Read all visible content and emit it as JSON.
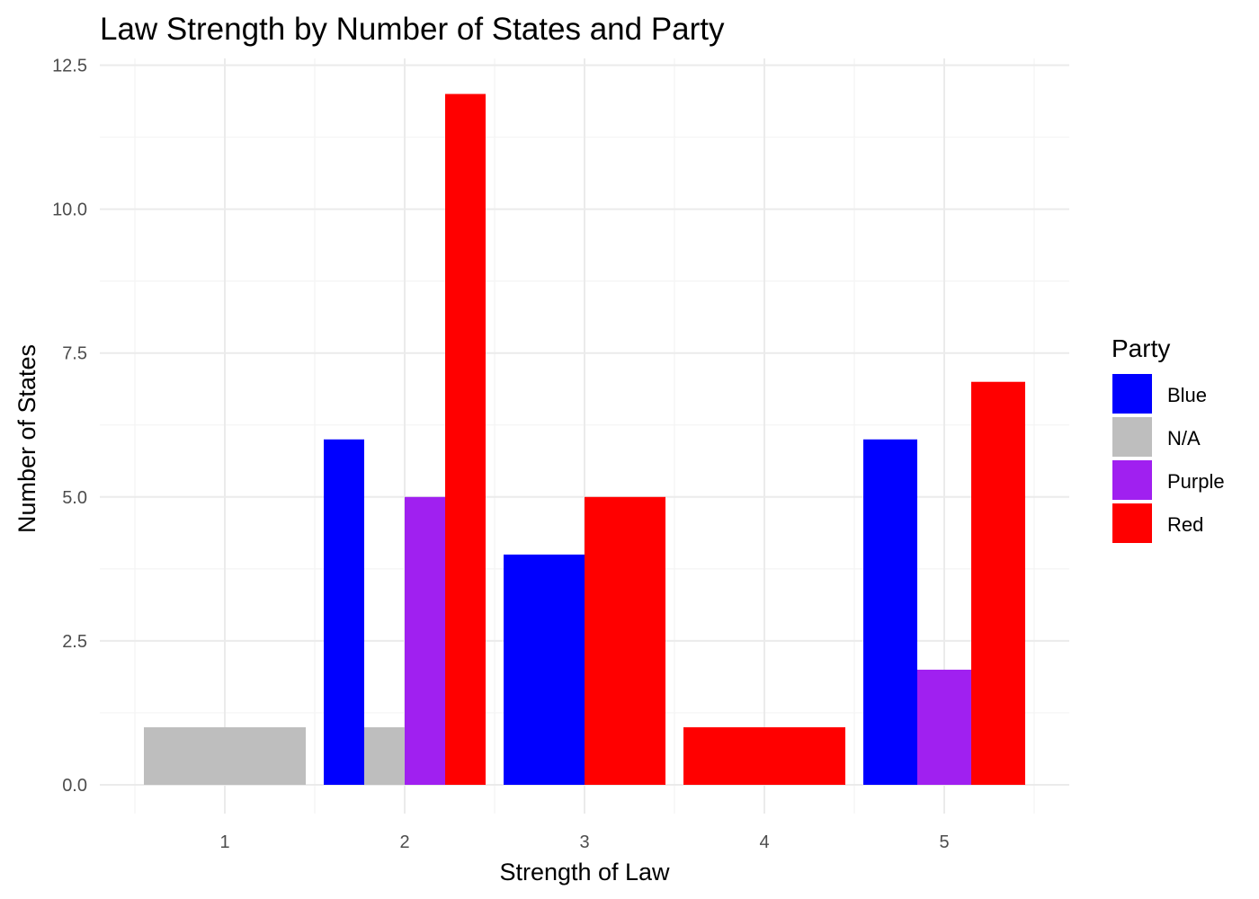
{
  "chart_data": {
    "type": "bar",
    "title": "Law Strength by Number of States and Party",
    "xlabel": "Strength of Law",
    "ylabel": "Number of States",
    "categories": [
      "1",
      "2",
      "3",
      "4",
      "5"
    ],
    "ylim": [
      0,
      12.5
    ],
    "yticks": [
      "0.0",
      "2.5",
      "5.0",
      "7.5",
      "10.0",
      "12.5"
    ],
    "grid": true,
    "legend": {
      "title": "Party",
      "position": "right",
      "entries": [
        "Blue",
        "N/A",
        "Purple",
        "Red"
      ]
    },
    "colors": {
      "Blue": "#0000ff",
      "N/A": "#bebebe",
      "Purple": "#a020f0",
      "Red": "#ff0000"
    },
    "series": [
      {
        "name": "Blue",
        "values": [
          null,
          6,
          4,
          null,
          6
        ]
      },
      {
        "name": "N/A",
        "values": [
          1,
          1,
          null,
          null,
          null
        ]
      },
      {
        "name": "Purple",
        "values": [
          null,
          5,
          null,
          null,
          2
        ]
      },
      {
        "name": "Red",
        "values": [
          null,
          12,
          5,
          1,
          7
        ]
      }
    ]
  }
}
